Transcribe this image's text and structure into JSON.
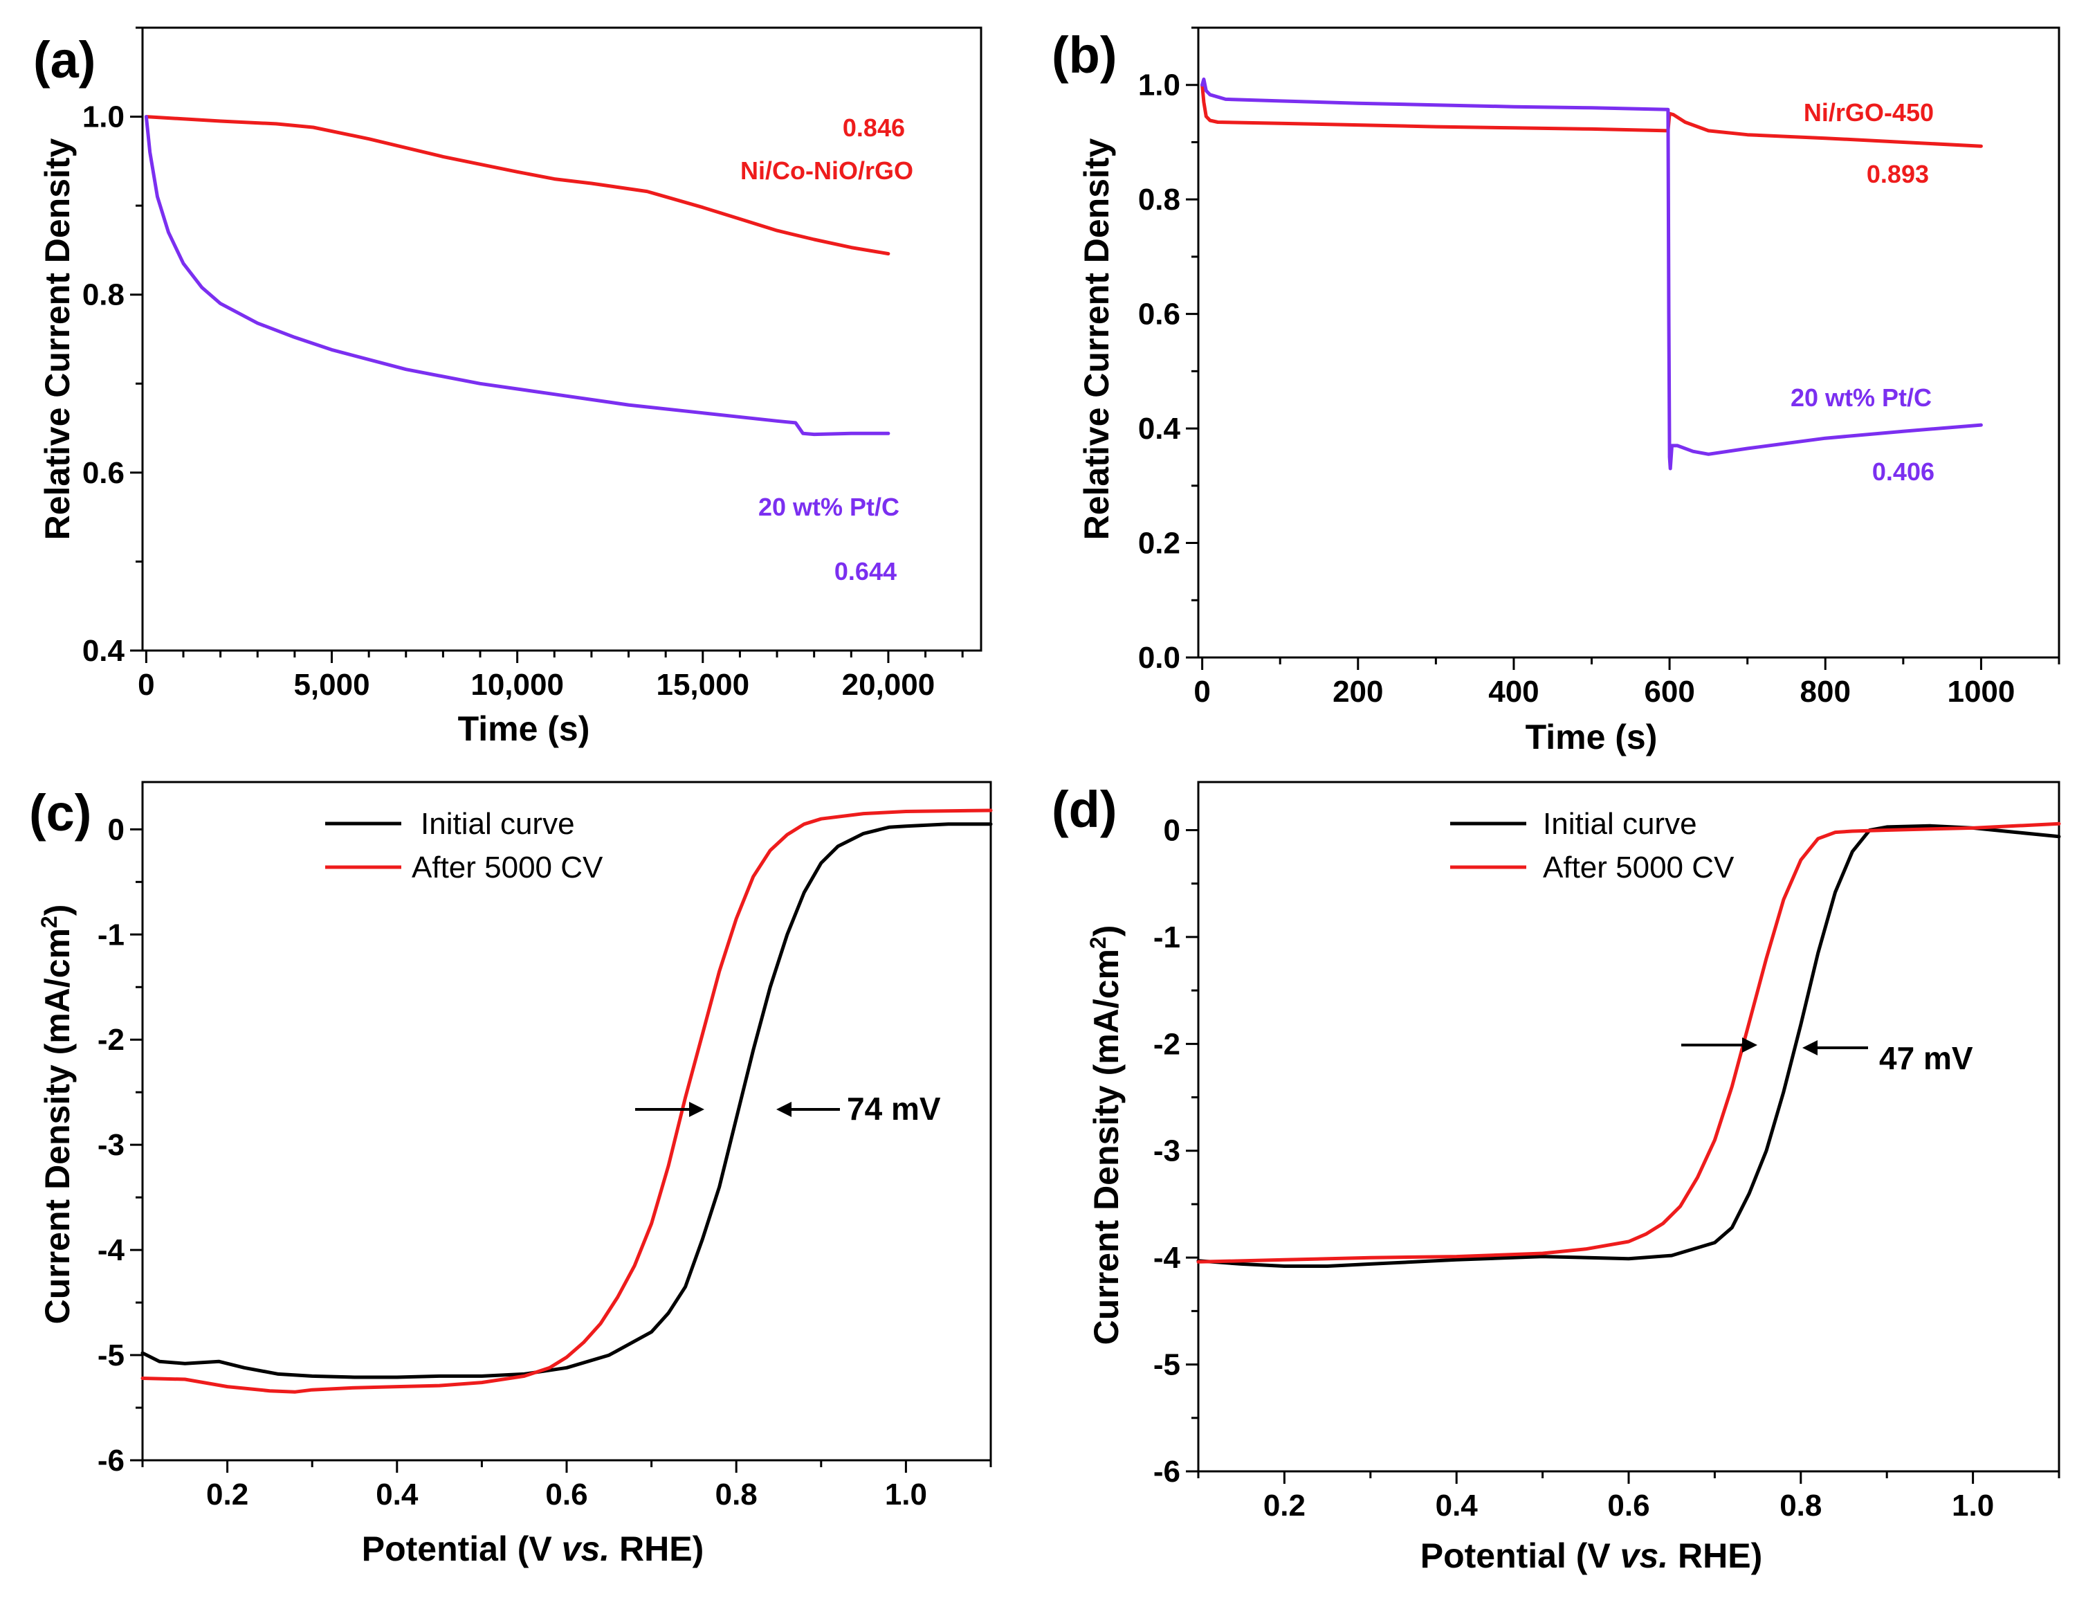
{
  "colors": {
    "red": "#ee1c1c",
    "purple": "#7b2ff0",
    "black": "#000000"
  },
  "chart_data": [
    {
      "panel": "(a)",
      "type": "line",
      "xlabel": "Time (s)",
      "ylabel": "Relative Current Density",
      "xlim": [
        -100,
        22500
      ],
      "ylim": [
        0.4,
        1.1
      ],
      "xticks": [
        0,
        5000,
        10000,
        15000,
        20000
      ],
      "xtick_labels": [
        "0",
        "5,000",
        "10,000",
        "15,000",
        "20,000"
      ],
      "yticks": [
        0.4,
        0.6,
        0.8,
        1.0
      ],
      "ytick_labels": [
        "0.4",
        "0.6",
        "0.8",
        "1.0"
      ],
      "series": [
        {
          "name": "Ni/Co-NiO/rGO",
          "color": "#ee1c1c",
          "x": [
            0,
            2000,
            3500,
            4500,
            6000,
            8000,
            10000,
            11000,
            12000,
            13500,
            14000,
            15000,
            16000,
            17000,
            18000,
            19000,
            20000
          ],
          "y": [
            1.0,
            0.995,
            0.992,
            0.988,
            0.975,
            0.955,
            0.938,
            0.93,
            0.925,
            0.916,
            0.91,
            0.898,
            0.885,
            0.872,
            0.862,
            0.853,
            0.846
          ]
        },
        {
          "name": "20 wt% Pt/C",
          "color": "#7b2ff0",
          "x": [
            0,
            100,
            300,
            600,
            1000,
            1500,
            2000,
            3000,
            4000,
            5000,
            7000,
            9000,
            11000,
            13000,
            15000,
            17000,
            17500,
            17700,
            18000,
            19000,
            20000
          ],
          "y": [
            1.0,
            0.96,
            0.91,
            0.87,
            0.835,
            0.808,
            0.79,
            0.768,
            0.752,
            0.738,
            0.716,
            0.7,
            0.688,
            0.676,
            0.667,
            0.658,
            0.656,
            0.644,
            0.643,
            0.644,
            0.644
          ]
        }
      ],
      "annotations": [
        {
          "text": "0.846",
          "color": "#ee1c1c"
        },
        {
          "text": "Ni/Co-NiO/rGO",
          "color": "#ee1c1c"
        },
        {
          "text": "20 wt% Pt/C",
          "color": "#7b2ff0"
        },
        {
          "text": "0.644",
          "color": "#7b2ff0"
        }
      ]
    },
    {
      "panel": "(b)",
      "type": "line",
      "xlabel": "Time (s)",
      "ylabel": "Relative Current Density",
      "xlim": [
        -5,
        1100
      ],
      "ylim": [
        0.0,
        1.1
      ],
      "xticks": [
        0,
        200,
        400,
        600,
        800,
        1000
      ],
      "xtick_labels": [
        "0",
        "200",
        "400",
        "600",
        "800",
        "1000"
      ],
      "yticks": [
        0.0,
        0.2,
        0.4,
        0.6,
        0.8,
        1.0
      ],
      "ytick_labels": [
        "0.0",
        "0.2",
        "0.4",
        "0.6",
        "0.8",
        "1.0"
      ],
      "series": [
        {
          "name": "Ni/rGO-450",
          "color": "#ee1c1c",
          "x": [
            0,
            2,
            5,
            10,
            20,
            100,
            200,
            300,
            400,
            500,
            598,
            600,
            605,
            620,
            650,
            700,
            800,
            900,
            1000
          ],
          "y": [
            1.0,
            0.97,
            0.945,
            0.938,
            0.935,
            0.933,
            0.93,
            0.927,
            0.925,
            0.923,
            0.92,
            0.95,
            0.948,
            0.935,
            0.92,
            0.913,
            0.907,
            0.9,
            0.893
          ]
        },
        {
          "name": "20 wt% Pt/C",
          "color": "#7b2ff0",
          "x": [
            0,
            2,
            5,
            10,
            30,
            100,
            200,
            300,
            400,
            500,
            598,
            599,
            600,
            601,
            603,
            610,
            630,
            650,
            700,
            800,
            900,
            1000
          ],
          "y": [
            1.0,
            1.01,
            0.99,
            0.983,
            0.975,
            0.972,
            0.968,
            0.965,
            0.962,
            0.96,
            0.957,
            0.6,
            0.35,
            0.33,
            0.37,
            0.37,
            0.36,
            0.355,
            0.365,
            0.383,
            0.395,
            0.406
          ]
        }
      ],
      "annotations": [
        {
          "text": "Ni/rGO-450",
          "color": "#ee1c1c"
        },
        {
          "text": "0.893",
          "color": "#ee1c1c"
        },
        {
          "text": "20 wt% Pt/C",
          "color": "#7b2ff0"
        },
        {
          "text": "0.406",
          "color": "#7b2ff0"
        }
      ]
    },
    {
      "panel": "(c)",
      "type": "line",
      "xlabel": "Potential (V vs. RHE)",
      "ylabel": "Current Density (mA/cm2)",
      "xlim": [
        0.1,
        1.1
      ],
      "ylim": [
        -6,
        0.45
      ],
      "xticks": [
        0.2,
        0.4,
        0.6,
        0.8,
        1.0
      ],
      "xtick_labels": [
        "0.2",
        "0.4",
        "0.6",
        "0.8",
        "1.0"
      ],
      "yticks": [
        -6,
        -5,
        -4,
        -3,
        -2,
        -1,
        0
      ],
      "ytick_labels": [
        "-6",
        "-5",
        "-4",
        "-3",
        "-2",
        "-1",
        "0"
      ],
      "legend": [
        "Initial curve",
        "After 5000 CV"
      ],
      "series": [
        {
          "name": "Initial curve",
          "color": "#000000",
          "x": [
            0.1,
            0.12,
            0.15,
            0.19,
            0.22,
            0.26,
            0.3,
            0.35,
            0.4,
            0.45,
            0.5,
            0.55,
            0.6,
            0.65,
            0.7,
            0.72,
            0.74,
            0.76,
            0.78,
            0.8,
            0.82,
            0.84,
            0.86,
            0.88,
            0.9,
            0.92,
            0.95,
            0.98,
            1.0,
            1.05,
            1.1
          ],
          "y": [
            -4.98,
            -5.06,
            -5.08,
            -5.06,
            -5.12,
            -5.18,
            -5.2,
            -5.21,
            -5.21,
            -5.2,
            -5.2,
            -5.18,
            -5.12,
            -5.0,
            -4.78,
            -4.6,
            -4.35,
            -3.9,
            -3.4,
            -2.75,
            -2.1,
            -1.5,
            -1.0,
            -0.6,
            -0.32,
            -0.16,
            -0.04,
            0.02,
            0.03,
            0.05,
            0.05
          ]
        },
        {
          "name": "After 5000 CV",
          "color": "#ee1c1c",
          "x": [
            0.1,
            0.15,
            0.2,
            0.25,
            0.28,
            0.3,
            0.35,
            0.4,
            0.45,
            0.5,
            0.55,
            0.58,
            0.6,
            0.62,
            0.64,
            0.66,
            0.68,
            0.7,
            0.72,
            0.74,
            0.76,
            0.78,
            0.8,
            0.82,
            0.84,
            0.86,
            0.88,
            0.9,
            0.95,
            1.0,
            1.1
          ],
          "y": [
            -5.22,
            -5.23,
            -5.3,
            -5.34,
            -5.35,
            -5.33,
            -5.31,
            -5.3,
            -5.29,
            -5.26,
            -5.2,
            -5.12,
            -5.02,
            -4.88,
            -4.7,
            -4.45,
            -4.15,
            -3.75,
            -3.2,
            -2.55,
            -1.95,
            -1.35,
            -0.85,
            -0.45,
            -0.2,
            -0.05,
            0.05,
            0.1,
            0.15,
            0.17,
            0.18
          ]
        }
      ],
      "half_wave_shift": "74 mV"
    },
    {
      "panel": "(d)",
      "type": "line",
      "xlabel": "Potential (V vs. RHE)",
      "ylabel": "Current Density (mA/cm2)",
      "xlim": [
        0.1,
        1.1
      ],
      "ylim": [
        -6,
        0.45
      ],
      "xticks": [
        0.2,
        0.4,
        0.6,
        0.8,
        1.0
      ],
      "xtick_labels": [
        "0.2",
        "0.4",
        "0.6",
        "0.8",
        "1.0"
      ],
      "yticks": [
        -6,
        -5,
        -4,
        -3,
        -2,
        -1,
        0
      ],
      "ytick_labels": [
        "-6",
        "-5",
        "-4",
        "-3",
        "-2",
        "-1",
        "0"
      ],
      "legend": [
        "Initial curve",
        "After 5000 CV"
      ],
      "series": [
        {
          "name": "Initial curve",
          "color": "#000000",
          "x": [
            0.1,
            0.15,
            0.2,
            0.25,
            0.3,
            0.4,
            0.5,
            0.6,
            0.65,
            0.7,
            0.72,
            0.74,
            0.76,
            0.78,
            0.8,
            0.82,
            0.84,
            0.86,
            0.88,
            0.9,
            0.95,
            1.0,
            1.05,
            1.1
          ],
          "y": [
            -4.03,
            -4.06,
            -4.08,
            -4.08,
            -4.06,
            -4.02,
            -3.99,
            -4.01,
            -3.98,
            -3.86,
            -3.72,
            -3.4,
            -3.0,
            -2.45,
            -1.82,
            -1.15,
            -0.58,
            -0.2,
            0.0,
            0.03,
            0.04,
            0.02,
            -0.02,
            -0.06
          ]
        },
        {
          "name": "After 5000 CV",
          "color": "#ee1c1c",
          "x": [
            0.1,
            0.2,
            0.3,
            0.4,
            0.5,
            0.55,
            0.6,
            0.62,
            0.64,
            0.66,
            0.68,
            0.7,
            0.72,
            0.74,
            0.76,
            0.78,
            0.8,
            0.82,
            0.84,
            0.86,
            0.9,
            0.95,
            1.0,
            1.05,
            1.1
          ],
          "y": [
            -4.04,
            -4.02,
            -4.0,
            -3.99,
            -3.96,
            -3.92,
            -3.85,
            -3.78,
            -3.68,
            -3.52,
            -3.25,
            -2.9,
            -2.4,
            -1.8,
            -1.2,
            -0.65,
            -0.28,
            -0.08,
            -0.02,
            -0.01,
            0.0,
            0.01,
            0.02,
            0.04,
            0.06
          ]
        }
      ],
      "half_wave_shift": "47 mV"
    }
  ]
}
